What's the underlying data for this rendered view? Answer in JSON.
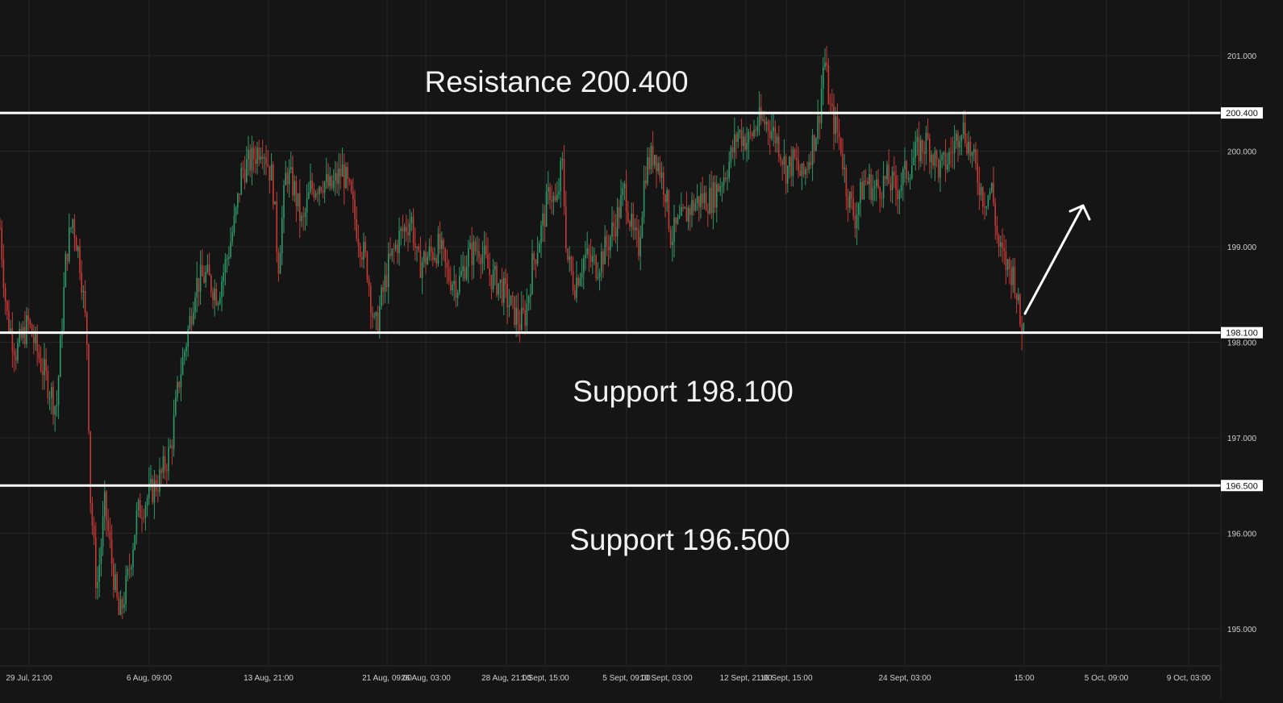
{
  "colors": {
    "background": "#151515",
    "grid": "#262626",
    "up_candle": "#2e9a6a",
    "down_candle": "#c73a36",
    "level_line": "#ffffff",
    "axis_text": "#cfcfcf",
    "annotation_text": "#f2f2f2"
  },
  "chart_data": {
    "type": "candlestick",
    "title": "",
    "xlabel": "",
    "ylabel": "",
    "ylim": [
      194.6,
      201.5
    ],
    "grid": true,
    "y_ticks": [
      "201.000",
      "200.000",
      "199.000",
      "198.000",
      "197.000",
      "196.000",
      "195.000"
    ],
    "x_ticks": [
      "29 Jul, 21:00",
      "6 Aug, 09:00",
      "13 Aug, 21:00",
      "21 Aug, 09:00",
      "26 Aug, 03:00",
      "28 Aug, 21:00",
      "1 Sept, 15:00",
      "5 Sept, 09:00",
      "10 Sept, 03:00",
      "12 Sept, 21:00",
      "16 Sept, 15:00",
      "24 Sept, 03:00",
      "15:00",
      "5 Oct, 09:00",
      "9 Oct, 03:00"
    ],
    "levels": [
      {
        "value": 200.4,
        "label": "200.400",
        "annotation": "Resistance 200.400"
      },
      {
        "value": 198.1,
        "label": "198.100",
        "annotation": "Support 198.100"
      },
      {
        "value": 196.5,
        "label": "196.500",
        "annotation": "Support 196.500"
      }
    ],
    "close_path": [
      [
        0,
        199.2
      ],
      [
        8,
        198.3
      ],
      [
        20,
        197.9
      ],
      [
        35,
        198.2
      ],
      [
        50,
        197.8
      ],
      [
        70,
        197.3
      ],
      [
        82,
        198.9
      ],
      [
        90,
        199.3
      ],
      [
        100,
        198.8
      ],
      [
        108,
        198.0
      ],
      [
        112,
        196.4
      ],
      [
        120,
        195.4
      ],
      [
        130,
        196.3
      ],
      [
        140,
        195.6
      ],
      [
        148,
        195.1
      ],
      [
        158,
        195.5
      ],
      [
        170,
        196.2
      ],
      [
        185,
        196.4
      ],
      [
        200,
        196.6
      ],
      [
        212,
        196.9
      ],
      [
        222,
        197.6
      ],
      [
        235,
        198.2
      ],
      [
        242,
        198.6
      ],
      [
        255,
        198.7
      ],
      [
        270,
        198.5
      ],
      [
        282,
        198.9
      ],
      [
        292,
        199.3
      ],
      [
        300,
        199.8
      ],
      [
        312,
        199.9
      ],
      [
        325,
        200.1
      ],
      [
        338,
        199.7
      ],
      [
        345,
        198.8
      ],
      [
        355,
        199.8
      ],
      [
        365,
        199.6
      ],
      [
        375,
        199.2
      ],
      [
        385,
        199.6
      ],
      [
        400,
        199.7
      ],
      [
        410,
        199.6
      ],
      [
        425,
        199.8
      ],
      [
        435,
        199.5
      ],
      [
        445,
        199.1
      ],
      [
        455,
        198.8
      ],
      [
        465,
        198.1
      ],
      [
        472,
        198.4
      ],
      [
        482,
        198.8
      ],
      [
        495,
        199.1
      ],
      [
        510,
        199.3
      ],
      [
        518,
        198.8
      ],
      [
        530,
        198.9
      ],
      [
        545,
        199.0
      ],
      [
        555,
        198.7
      ],
      [
        568,
        198.6
      ],
      [
        580,
        198.9
      ],
      [
        595,
        199.0
      ],
      [
        608,
        198.7
      ],
      [
        620,
        198.6
      ],
      [
        632,
        198.4
      ],
      [
        645,
        198.2
      ],
      [
        652,
        198.3
      ],
      [
        660,
        198.8
      ],
      [
        672,
        199.2
      ],
      [
        682,
        199.6
      ],
      [
        690,
        199.4
      ],
      [
        697,
        199.9
      ],
      [
        703,
        198.9
      ],
      [
        712,
        198.6
      ],
      [
        725,
        198.9
      ],
      [
        740,
        198.8
      ],
      [
        752,
        199.0
      ],
      [
        765,
        199.3
      ],
      [
        775,
        199.6
      ],
      [
        785,
        199.1
      ],
      [
        792,
        199.0
      ],
      [
        800,
        199.8
      ],
      [
        812,
        200.0
      ],
      [
        825,
        199.6
      ],
      [
        832,
        199.1
      ],
      [
        840,
        199.2
      ],
      [
        855,
        199.4
      ],
      [
        868,
        199.5
      ],
      [
        882,
        199.5
      ],
      [
        895,
        199.7
      ],
      [
        905,
        199.9
      ],
      [
        915,
        200.2
      ],
      [
        928,
        200.1
      ],
      [
        940,
        200.3
      ],
      [
        952,
        200.3
      ],
      [
        965,
        200.1
      ],
      [
        975,
        199.8
      ],
      [
        985,
        199.9
      ],
      [
        995,
        199.7
      ],
      [
        1005,
        200.0
      ],
      [
        1015,
        200.3
      ],
      [
        1022,
        201.0
      ],
      [
        1030,
        200.4
      ],
      [
        1042,
        200.1
      ],
      [
        1050,
        199.6
      ],
      [
        1060,
        199.3
      ],
      [
        1072,
        199.7
      ],
      [
        1085,
        199.6
      ],
      [
        1100,
        199.7
      ],
      [
        1112,
        199.6
      ],
      [
        1125,
        199.8
      ],
      [
        1138,
        200.0
      ],
      [
        1150,
        200.1
      ],
      [
        1165,
        199.8
      ],
      [
        1175,
        199.9
      ],
      [
        1185,
        200.1
      ],
      [
        1192,
        200.3
      ],
      [
        1200,
        200.1
      ],
      [
        1210,
        199.8
      ],
      [
        1220,
        199.5
      ],
      [
        1230,
        199.6
      ],
      [
        1238,
        199.0
      ],
      [
        1248,
        198.8
      ],
      [
        1258,
        198.7
      ],
      [
        1265,
        198.2
      ],
      [
        1270,
        198.15
      ]
    ]
  },
  "annotations": {
    "resistance_text": "Resistance 200.400",
    "support1_text": "Support 198.100",
    "support2_text": "Support 196.500"
  },
  "arrow": {
    "direction": "up"
  }
}
